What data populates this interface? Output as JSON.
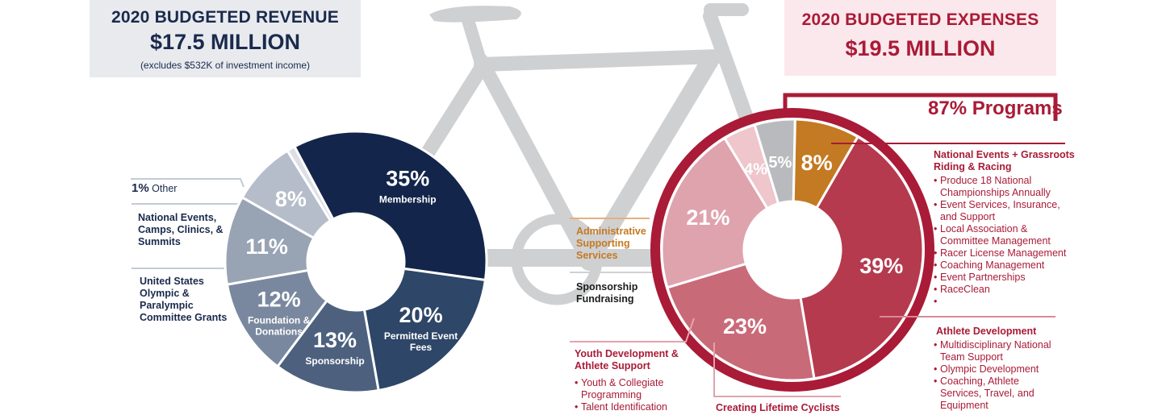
{
  "revenue": {
    "title": "2020 BUDGETED REVENUE",
    "total": "$17.5 MILLION",
    "note": "(excludes $532K of investment income)"
  },
  "expenses": {
    "title": "2020 BUDGETED EXPENSES",
    "total": "$19.5 MILLION",
    "programs_total": "87% Programs",
    "admin_label": "Administrative Supporting Services",
    "fundraising_label": "Sponsorship Fundraising",
    "groups": [
      {
        "title": "National Events + Grassroots Riding & Racing",
        "items": [
          "Produce 18 National Championships Annually",
          "Event Services, Insurance, and Support",
          "Local Association & Committee Management",
          "Racer License Management",
          "Coaching Management",
          "Event Partnerships",
          "RaceClean"
        ]
      },
      {
        "title": "Athlete Development",
        "items": [
          "Multidisciplinary National Team Support",
          "Olympic Development",
          "Coaching, Athlete Services, Travel, and Equipment"
        ]
      },
      {
        "title": "Youth Development & Athlete Support",
        "items": [
          "Youth & Collegiate Programming",
          "Talent Identification"
        ]
      },
      {
        "title": "Creating Lifetime Cyclists",
        "items": []
      }
    ]
  },
  "colors": {
    "navy": "#13254a",
    "red": "#a91b37",
    "orange": "#c47a22",
    "grey": "#cfd0d2"
  },
  "chart_data": [
    {
      "type": "pie",
      "title": "2020 BUDGETED REVENUE",
      "other_label": {
        "pct": "1%",
        "text": "Other"
      },
      "side_labels": [
        "National Events, Camps, Clinics, & Summits",
        "United States Olympic & Paralympic Committee Grants"
      ],
      "slices": [
        {
          "name": "Membership",
          "value": 35,
          "label_pct": "35%",
          "label_text": "Membership",
          "color": "#13254a"
        },
        {
          "name": "Permitted Event Fees",
          "value": 20,
          "label_pct": "20%",
          "label_text": "Permitted Event Fees",
          "color": "#2e4667"
        },
        {
          "name": "Sponsorship",
          "value": 13,
          "label_pct": "13%",
          "label_text": "Sponsorship",
          "color": "#4d617f"
        },
        {
          "name": "Foundation & Donations",
          "value": 12,
          "label_pct": "12%",
          "label_text": "Foundation & Donations",
          "color": "#7a889f"
        },
        {
          "name": "United States Olympic & Paralympic Committee Grants",
          "value": 11,
          "label_pct": "11%",
          "label_text": "",
          "color": "#98a3b4"
        },
        {
          "name": "National Events, Camps, Clinics, & Summits",
          "value": 8,
          "label_pct": "8%",
          "label_text": "",
          "color": "#b6bdca"
        },
        {
          "name": "Other",
          "value": 1,
          "label_pct": "",
          "label_text": "",
          "color": "#dcdfe5"
        }
      ]
    },
    {
      "type": "pie",
      "title": "2020 BUDGETED EXPENSES",
      "slices": [
        {
          "name": "National Events + Grassroots Riding & Racing",
          "value": 39,
          "label_pct": "39%",
          "color": "#b53a4e"
        },
        {
          "name": "Athlete Development",
          "value": 23,
          "label_pct": "23%",
          "color": "#c96a79"
        },
        {
          "name": "Creating Lifetime Cyclists",
          "value": 21,
          "label_pct": "21%",
          "color": "#dfa3ad"
        },
        {
          "name": "Youth Development & Athlete Support",
          "value": 4,
          "label_pct": "4%",
          "color": "#eec6cc"
        },
        {
          "name": "Sponsorship Fundraising",
          "value": 5,
          "label_pct": "5%",
          "color": "#b9babd"
        },
        {
          "name": "Administrative Supporting Services",
          "value": 8,
          "label_pct": "8%",
          "color": "#c47a22"
        }
      ]
    }
  ]
}
